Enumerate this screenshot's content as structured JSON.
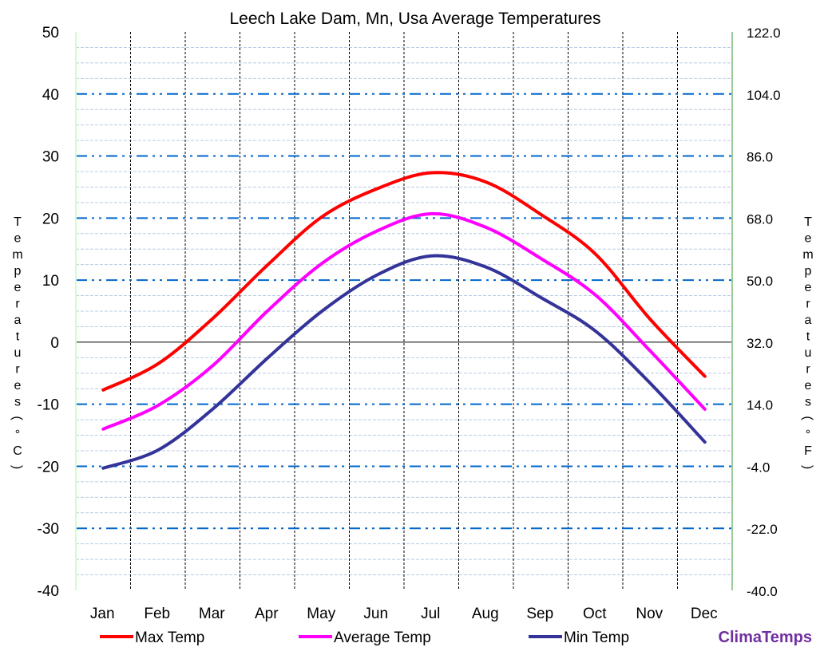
{
  "chart_data": {
    "type": "line",
    "title": "Leech Lake Dam, Mn, Usa Average Temperatures",
    "ylabel": "Temperatures (°C)",
    "ylabel_right": "Temperatures (°F)",
    "categories": [
      "Jan",
      "Feb",
      "Mar",
      "Apr",
      "May",
      "Jun",
      "Jul",
      "Aug",
      "Sep",
      "Oct",
      "Nov",
      "Dec"
    ],
    "ylim": [
      -40,
      50
    ],
    "yticks": [
      "50",
      "40",
      "30",
      "20",
      "10",
      "0",
      "-10",
      "-20",
      "-30",
      "-40"
    ],
    "ylim_right": [
      -40,
      122
    ],
    "yticks_right": [
      "122.0",
      "104.0",
      "86.0",
      "68.0",
      "50.0",
      "32.0",
      "14.0",
      "-4.0",
      "-22.0",
      "-40.0"
    ],
    "grid": true,
    "legend_position": "bottom",
    "series": [
      {
        "name": "Max Temp",
        "color": "#ff0000",
        "values": [
          -7.7,
          -3.5,
          3.8,
          12.4,
          20.2,
          24.7,
          27.3,
          25.8,
          20.6,
          14.2,
          3.7,
          -5.5
        ]
      },
      {
        "name": "Average Temp",
        "color": "#ff00ff",
        "values": [
          -14.0,
          -10.2,
          -3.8,
          5.0,
          12.7,
          17.9,
          20.7,
          18.5,
          13.5,
          7.6,
          -1.4,
          -10.8
        ]
      },
      {
        "name": "Min Temp",
        "color": "#333399",
        "values": [
          -20.3,
          -17.4,
          -10.8,
          -2.6,
          5.0,
          10.8,
          13.9,
          12.1,
          7.2,
          1.8,
          -6.6,
          -16.1
        ]
      }
    ]
  },
  "brand": "ClimaTemps",
  "brand_color": "#7030a0"
}
